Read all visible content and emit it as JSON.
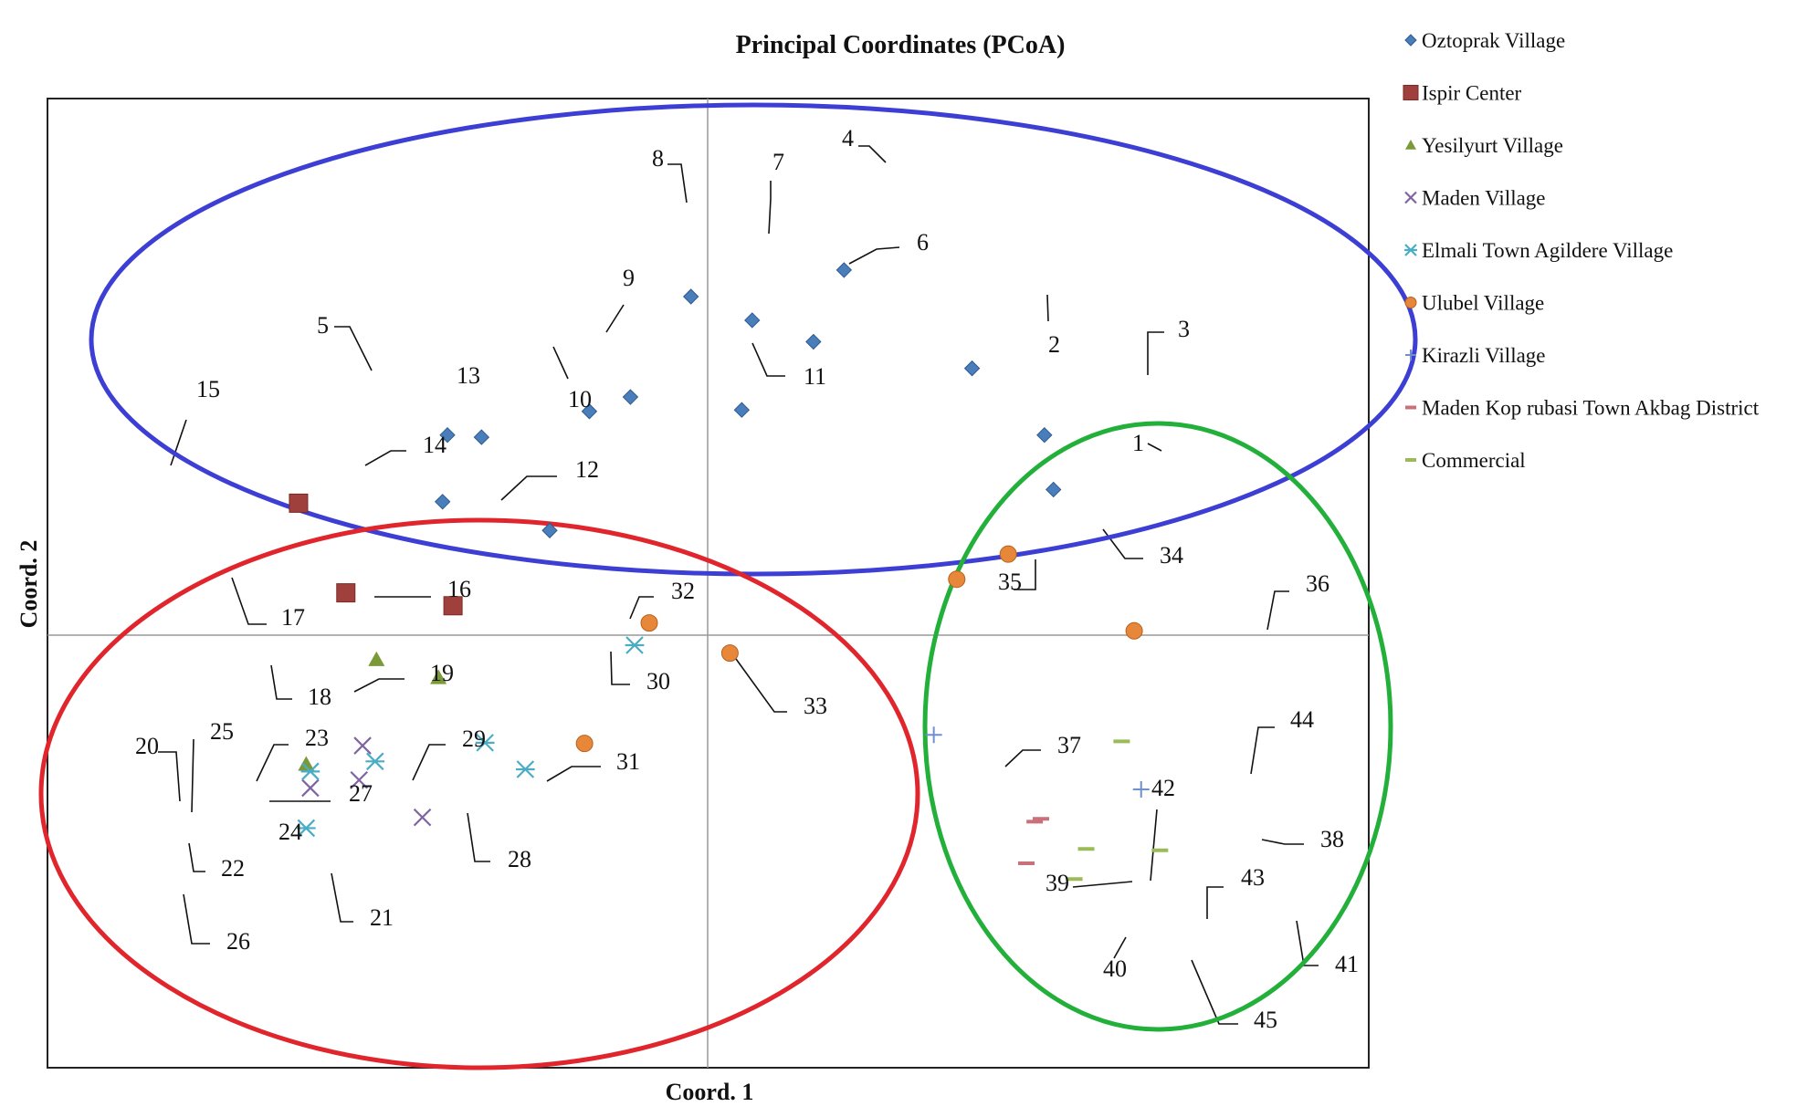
{
  "chart_data": {
    "type": "scatter",
    "title": "Principal Coordinates (PCoA)",
    "xlabel": "Coord. 1",
    "ylabel": "Coord. 2",
    "grid": false,
    "legend_position": "right",
    "series": [
      {
        "name": "Oztoprak Village",
        "marker": "diamond",
        "color": "#4a7ebb",
        "points": [
          {
            "id": "1",
            "x": 0.497,
            "y": 0.203
          },
          {
            "id": "2",
            "x": 0.38,
            "y": 0.372
          },
          {
            "id": "3",
            "x": 0.484,
            "y": 0.279
          },
          {
            "id": "4",
            "x": 0.196,
            "y": 0.509
          },
          {
            "id": "5",
            "x": -0.374,
            "y": 0.279
          },
          {
            "id": "6",
            "x": 0.152,
            "y": 0.409
          },
          {
            "id": "7",
            "x": 0.064,
            "y": 0.439
          },
          {
            "id": "8",
            "x": -0.024,
            "y": 0.472
          },
          {
            "id": "9",
            "x": -0.111,
            "y": 0.332
          },
          {
            "id": "10",
            "x": -0.17,
            "y": 0.312
          },
          {
            "id": "11",
            "x": 0.049,
            "y": 0.314
          },
          {
            "id": "12",
            "x": -0.227,
            "y": 0.146
          },
          {
            "id": "13",
            "x": -0.325,
            "y": 0.276
          },
          {
            "id": "14",
            "x": -0.381,
            "y": 0.186
          }
        ]
      },
      {
        "name": "Ispir Center",
        "marker": "square",
        "color": "#a0403d",
        "points": [
          {
            "id": "15",
            "x": -0.588,
            "y": 0.184
          },
          {
            "id": "16",
            "x": -0.366,
            "y": 0.041
          },
          {
            "id": "17",
            "x": -0.52,
            "y": 0.059
          }
        ]
      },
      {
        "name": "Yesilyurt Village",
        "marker": "triangle",
        "color": "#7a9a3a",
        "points": [
          {
            "id": "18",
            "x": -0.476,
            "y": -0.034
          },
          {
            "id": "19",
            "x": -0.387,
            "y": -0.059
          },
          {
            "id": "20",
            "x": -0.577,
            "y": -0.18
          }
        ]
      },
      {
        "name": "Maden Village",
        "marker": "x",
        "color": "#8064a2",
        "points": [
          {
            "id": "21",
            "x": -0.41,
            "y": -0.254
          },
          {
            "id": "22",
            "x": -0.571,
            "y": -0.213
          },
          {
            "id": "23",
            "x": -0.496,
            "y": -0.154
          },
          {
            "id": "24",
            "x": -0.501,
            "y": -0.202
          }
        ]
      },
      {
        "name": "Elmali Town Agildere Village",
        "marker": "star",
        "color": "#4bacc6",
        "points": [
          {
            "id": "25",
            "x": -0.571,
            "y": -0.19
          },
          {
            "id": "26",
            "x": -0.577,
            "y": -0.269
          },
          {
            "id": "27",
            "x": -0.478,
            "y": -0.176
          },
          {
            "id": "28",
            "x": -0.262,
            "y": -0.187
          },
          {
            "id": "29",
            "x": -0.32,
            "y": -0.15
          },
          {
            "id": "30",
            "x": -0.105,
            "y": -0.014
          }
        ]
      },
      {
        "name": "Ulubel Village",
        "marker": "circle",
        "color": "#e6873a",
        "points": [
          {
            "id": "31",
            "x": -0.177,
            "y": -0.151
          },
          {
            "id": "32",
            "x": -0.084,
            "y": 0.017
          },
          {
            "id": "33",
            "x": 0.032,
            "y": -0.025
          },
          {
            "id": "34",
            "x": 0.432,
            "y": 0.113
          },
          {
            "id": "35",
            "x": 0.358,
            "y": 0.078
          },
          {
            "id": "36",
            "x": 0.613,
            "y": 0.006
          }
        ]
      },
      {
        "name": "Kirazli Village",
        "marker": "plus",
        "color": "#6f8fcf",
        "points": [
          {
            "id": "37",
            "x": 0.325,
            "y": -0.139
          },
          {
            "id": "38",
            "x": 0.623,
            "y": -0.215
          }
        ]
      },
      {
        "name": "Maden Kop rubasi Town Akbag District",
        "marker": "dash",
        "color": "#c9707a",
        "points": [
          {
            "id": "39",
            "x": 0.47,
            "y": -0.26
          },
          {
            "id": "40",
            "x": 0.458,
            "y": -0.318
          },
          {
            "id": "42",
            "x": 0.479,
            "y": -0.256
          }
        ]
      },
      {
        "name": "Commercial",
        "marker": "dash",
        "color": "#9bbb59",
        "points": [
          {
            "id": "41",
            "x": 0.65,
            "y": -0.3
          },
          {
            "id": "43",
            "x": 0.544,
            "y": -0.298
          },
          {
            "id": "44",
            "x": 0.595,
            "y": -0.148
          },
          {
            "id": "45",
            "x": 0.527,
            "y": -0.34
          }
        ]
      }
    ]
  }
}
